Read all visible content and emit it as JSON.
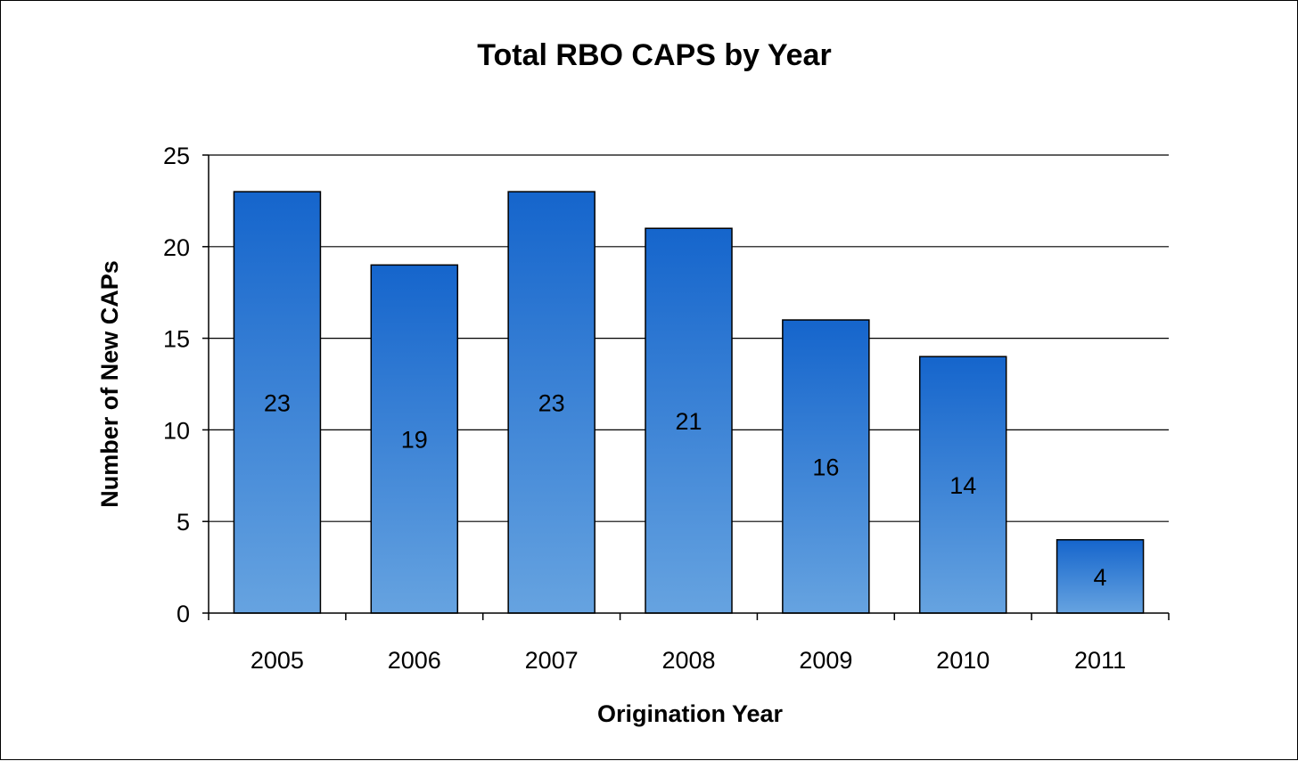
{
  "chart_data": {
    "type": "bar",
    "title": "Total RBO CAPS by Year",
    "xlabel": "Origination Year",
    "ylabel": "Number of New CAPs",
    "categories": [
      "2005",
      "2006",
      "2007",
      "2008",
      "2009",
      "2010",
      "2011"
    ],
    "values": [
      23,
      19,
      23,
      21,
      16,
      14,
      4
    ],
    "ylim": [
      0,
      25
    ],
    "yticks": [
      0,
      5,
      10,
      15,
      20,
      25
    ],
    "grid": true,
    "legend": "none",
    "data_labels": true,
    "colors": {
      "bar_top": "#1565cc",
      "bar_bottom": "#66a3e0",
      "bar_border": "#000000",
      "gridline": "#000000"
    }
  }
}
